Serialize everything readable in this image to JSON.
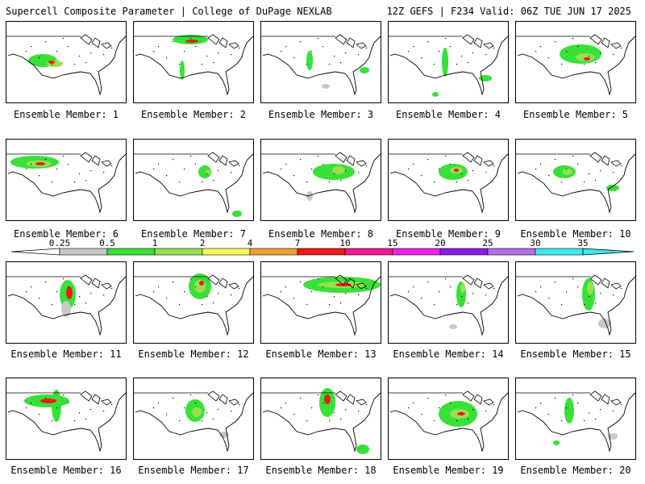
{
  "header": {
    "left": "Supercell Composite Parameter | College of DuPage NEXLAB",
    "right": "12Z GEFS | F234 Valid: 06Z TUE JUN 17 2025"
  },
  "colorbar": {
    "ticks": [
      "0.25",
      "0.5",
      "1",
      "2",
      "4",
      "7",
      "10",
      "15",
      "20",
      "25",
      "30",
      "35"
    ],
    "colors": [
      "#c8c8c8",
      "#38e038",
      "#98e050",
      "#f8f858",
      "#f0a030",
      "#f01818",
      "#f01890",
      "#f020f0",
      "#8a1ce8",
      "#b070e8",
      "#40e8f0"
    ]
  },
  "members": [
    {
      "label": "Ensemble Member: 1"
    },
    {
      "label": "Ensemble Member: 2"
    },
    {
      "label": "Ensemble Member: 3"
    },
    {
      "label": "Ensemble Member: 4"
    },
    {
      "label": "Ensemble Member: 5"
    },
    {
      "label": "Ensemble Member: 6"
    },
    {
      "label": "Ensemble Member: 7"
    },
    {
      "label": "Ensemble Member: 8"
    },
    {
      "label": "Ensemble Member: 9"
    },
    {
      "label": "Ensemble Member: 10"
    },
    {
      "label": "Ensemble Member: 11"
    },
    {
      "label": "Ensemble Member: 12"
    },
    {
      "label": "Ensemble Member: 13"
    },
    {
      "label": "Ensemble Member: 14"
    },
    {
      "label": "Ensemble Member: 15"
    },
    {
      "label": "Ensemble Member: 16"
    },
    {
      "label": "Ensemble Member: 17"
    },
    {
      "label": "Ensemble Member: 18"
    },
    {
      "label": "Ensemble Member: 19"
    },
    {
      "label": "Ensemble Member: 20"
    }
  ]
}
